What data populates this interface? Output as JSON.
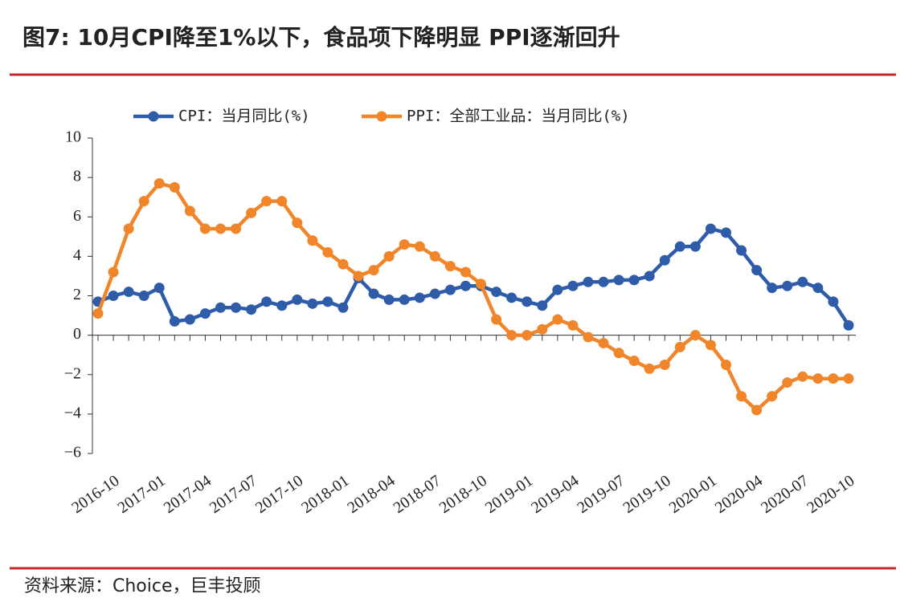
{
  "chart_data": {
    "type": "line",
    "title": "图7: 10月CPI降至1%以下，食品项下降明显 PPI逐渐回升",
    "source": "资料来源：Choice，巨丰投顾",
    "categories": [
      null,
      "2016-10",
      null,
      null,
      "2017-01",
      null,
      null,
      "2017-04",
      null,
      null,
      "2017-07",
      null,
      null,
      "2017-10",
      null,
      null,
      "2018-01",
      null,
      null,
      "2018-04",
      null,
      null,
      "2018-07",
      null,
      null,
      "2018-10",
      null,
      null,
      "2019-01",
      null,
      null,
      "2019-04",
      null,
      null,
      "2019-07",
      null,
      null,
      "2019-10",
      null,
      null,
      "2020-01",
      null,
      null,
      "2020-04",
      null,
      null,
      "2020-07",
      null,
      null,
      "2020-10"
    ],
    "series": [
      {
        "name": "CPI：当月同比(%)",
        "color": "#2f5ca8",
        "values": [
          1.7,
          2.0,
          2.2,
          2.0,
          2.4,
          0.7,
          0.8,
          1.1,
          1.4,
          1.4,
          1.3,
          1.7,
          1.5,
          1.8,
          1.6,
          1.7,
          1.4,
          2.9,
          2.1,
          1.8,
          1.8,
          1.9,
          2.1,
          2.3,
          2.5,
          2.5,
          2.2,
          1.9,
          1.7,
          1.5,
          2.3,
          2.5,
          2.7,
          2.7,
          2.8,
          2.8,
          3.0,
          3.8,
          4.5,
          4.5,
          5.4,
          5.2,
          4.3,
          3.3,
          2.4,
          2.5,
          2.7,
          2.4,
          1.7,
          0.5
        ]
      },
      {
        "name": "PPI：全部工业品：当月同比(%)",
        "color": "#f0852a",
        "values": [
          1.1,
          3.2,
          5.4,
          6.8,
          7.7,
          7.5,
          6.3,
          5.4,
          5.4,
          5.4,
          6.2,
          6.8,
          6.8,
          5.7,
          4.8,
          4.2,
          3.6,
          3.0,
          3.3,
          4.0,
          4.6,
          4.5,
          4.0,
          3.5,
          3.2,
          2.6,
          0.8,
          0.0,
          0.0,
          0.3,
          0.8,
          0.5,
          -0.1,
          -0.4,
          -0.9,
          -1.3,
          -1.7,
          -1.5,
          -0.6,
          0.0,
          -0.5,
          -1.5,
          -3.1,
          -3.8,
          -3.1,
          -2.4,
          -2.1,
          -2.2,
          -2.2,
          -2.2
        ]
      }
    ],
    "ylim": [
      -6,
      10
    ],
    "yticks": [
      {
        "value": -6,
        "label": "−6"
      },
      {
        "value": -4,
        "label": "−4"
      },
      {
        "value": -2,
        "label": "−2"
      },
      0,
      2,
      4,
      6,
      8,
      10
    ]
  }
}
